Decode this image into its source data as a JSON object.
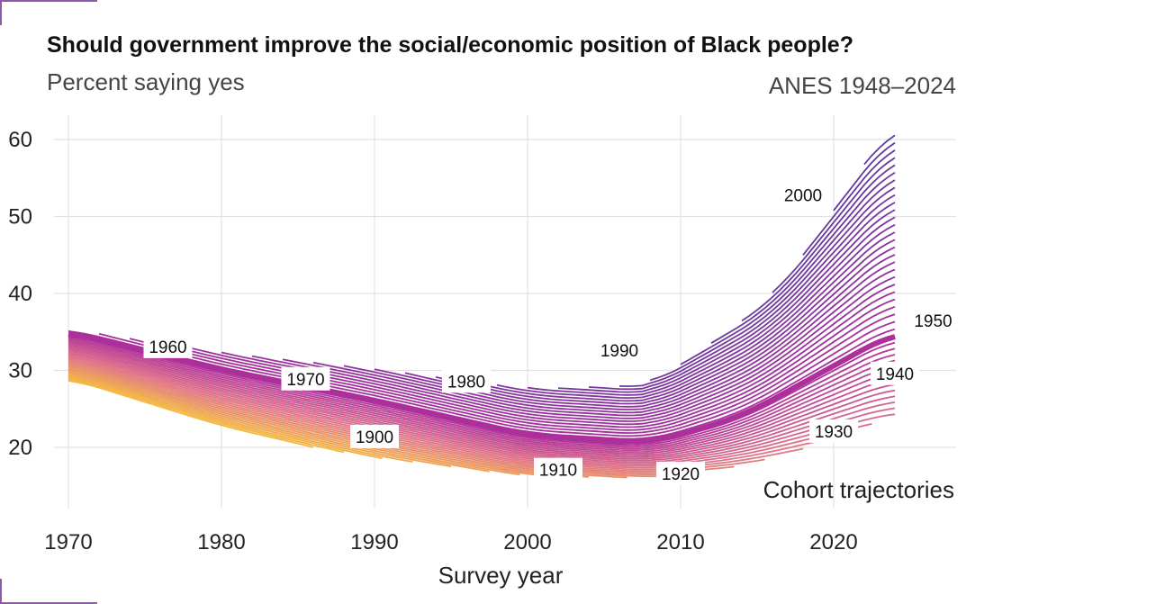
{
  "title": "Should government improve the social/economic position of Black people?",
  "subtitle": "Percent saying yes",
  "source": "ANES 1948–2024",
  "legend_note": "Cohort trajectories",
  "chart_data": {
    "type": "line",
    "title": "Should government improve the social/economic position of Black people?",
    "subtitle": "Percent saying yes",
    "xlabel": "Survey year",
    "ylabel": "",
    "xlim": [
      1968,
      2028
    ],
    "ylim": [
      13,
      64
    ],
    "xticks": [
      1970,
      1980,
      1990,
      2000,
      2010,
      2020
    ],
    "yticks": [
      20,
      30,
      40,
      50,
      60
    ],
    "grid": true,
    "cohort_range": [
      1890,
      2006
    ],
    "anchors": {
      "cohort_1900": {
        "x": [
          1970,
          1980,
          1990,
          2000,
          2008
        ],
        "y": [
          30,
          24,
          19.5,
          16,
          15
        ]
      },
      "cohort_1950": {
        "x": [
          1970,
          1980,
          1990,
          2000,
          2008,
          2014,
          2024
        ],
        "y": [
          35,
          30,
          26,
          21.5,
          20.5,
          24,
          35
        ]
      },
      "cohort_2000": {
        "x": [
          2008,
          2016,
          2024
        ],
        "y": [
          30,
          40,
          60
        ]
      }
    },
    "cohort_labels": [
      {
        "label": "1960",
        "x": 1976.5,
        "y": 33
      },
      {
        "label": "1970",
        "x": 1985.5,
        "y": 28.8
      },
      {
        "label": "1980",
        "x": 1996,
        "y": 28.5
      },
      {
        "label": "1990",
        "x": 2006,
        "y": 32.5
      },
      {
        "label": "2000",
        "x": 2018,
        "y": 52.7
      },
      {
        "label": "1950",
        "x": 2026.5,
        "y": 36.4
      },
      {
        "label": "1940",
        "x": 2024,
        "y": 29.5
      },
      {
        "label": "1930",
        "x": 2020,
        "y": 22
      },
      {
        "label": "1920",
        "x": 2010,
        "y": 16.5
      },
      {
        "label": "1910",
        "x": 2002,
        "y": 17
      },
      {
        "label": "1900",
        "x": 1990,
        "y": 21.3
      }
    ],
    "colors": {
      "oldest": "#f4b83c",
      "mid": "#e07389",
      "cohort_1950": "#ad2f9b",
      "youngest": "#5a3aa0"
    }
  }
}
